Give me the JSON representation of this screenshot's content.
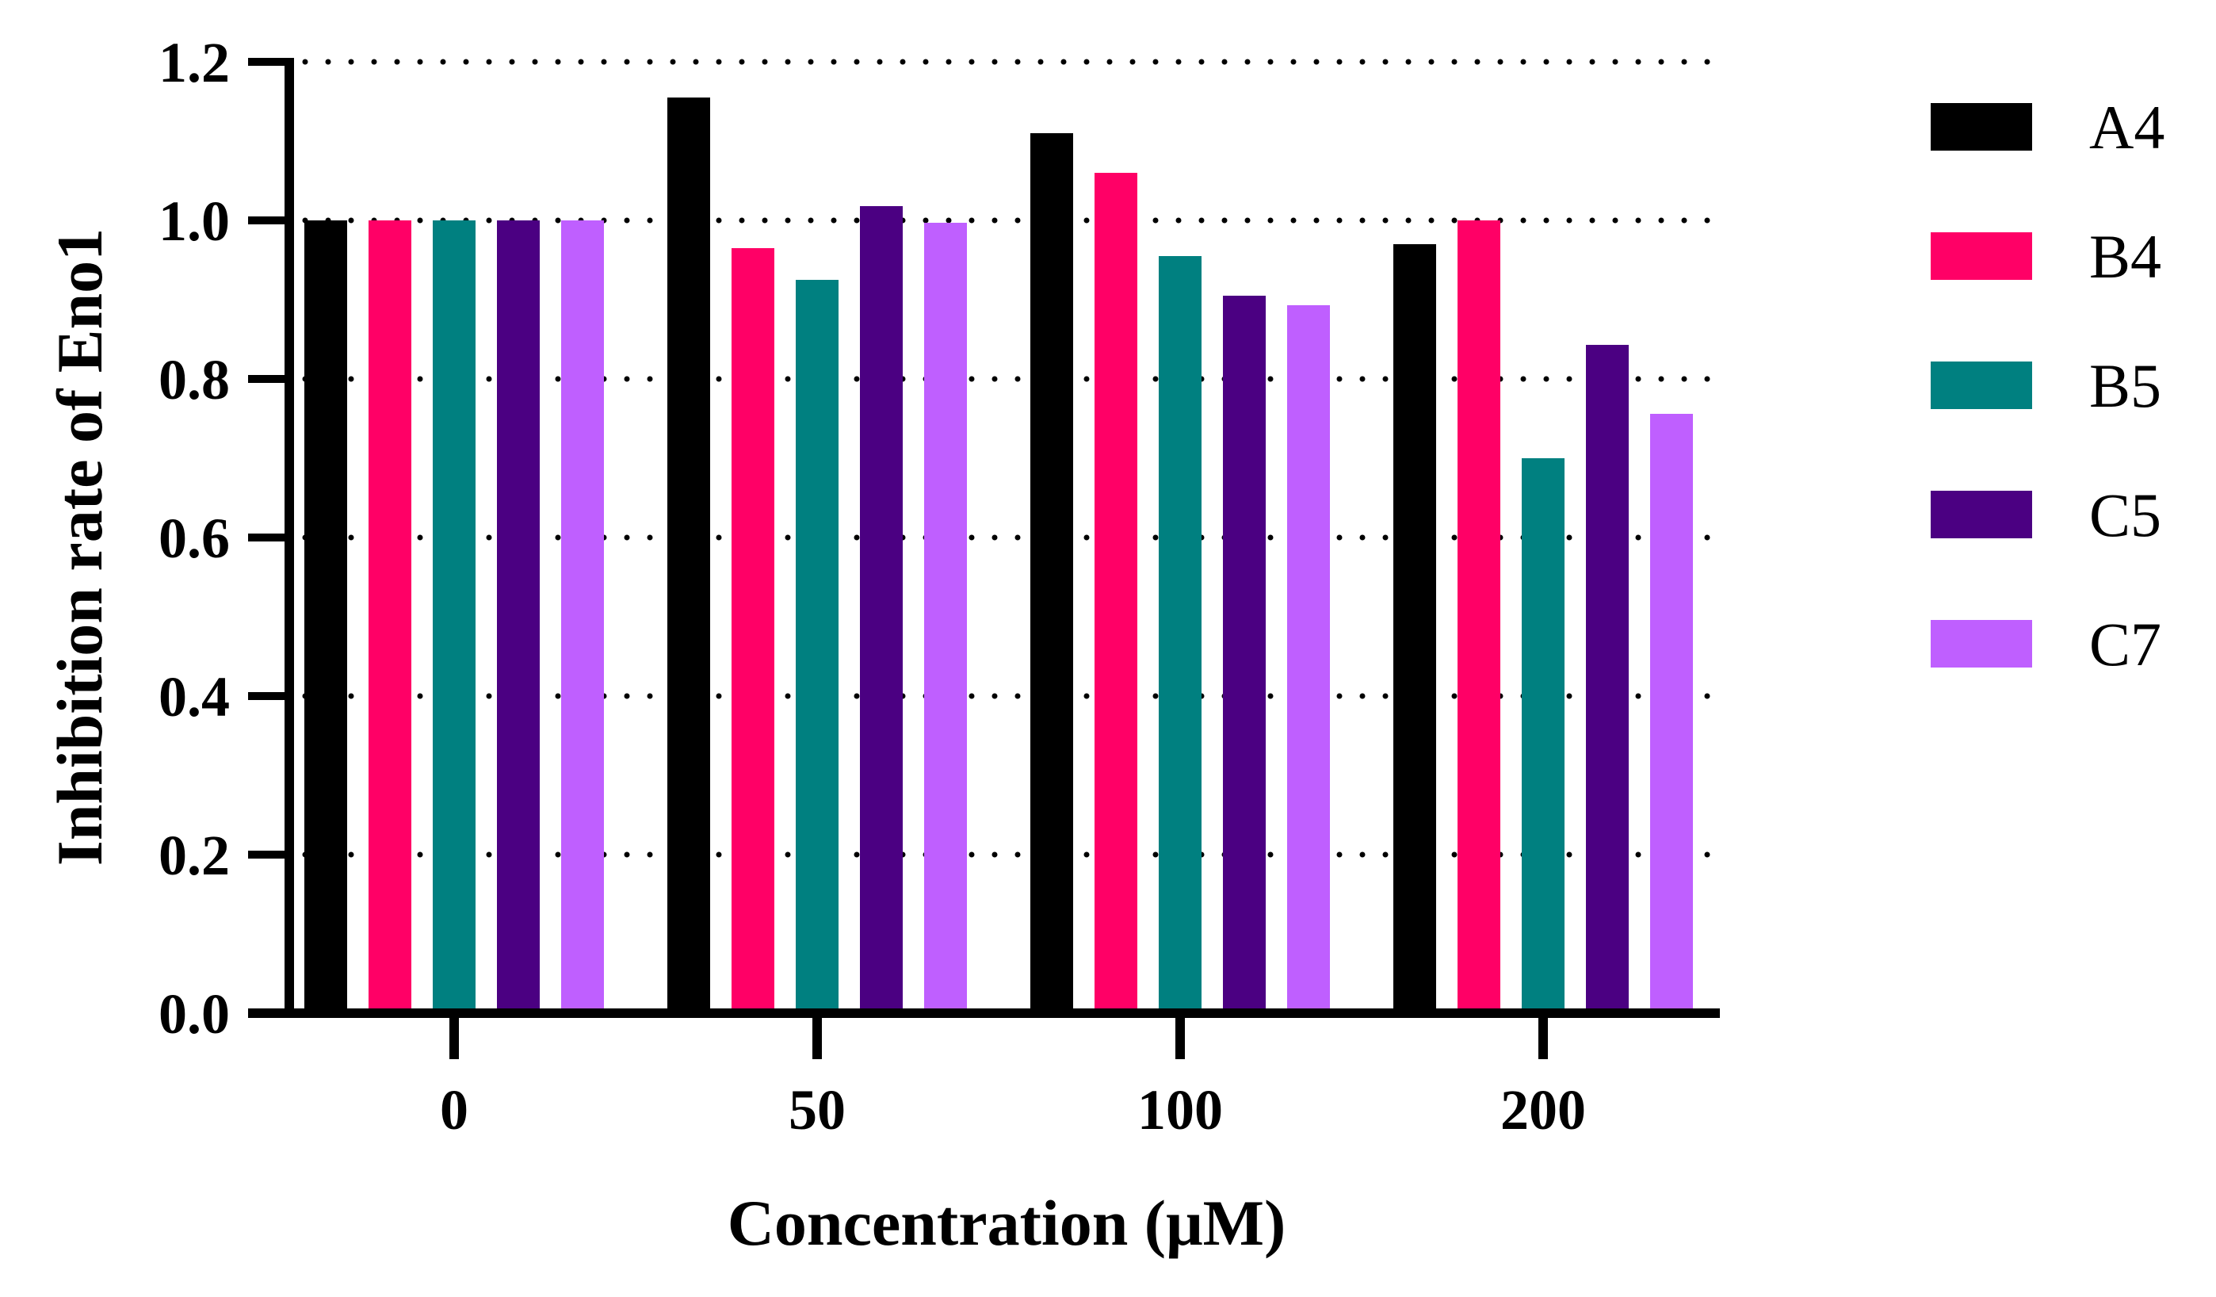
{
  "chart_data": {
    "type": "bar",
    "title": "",
    "xlabel": "Concentration (μM)",
    "ylabel": "Inhibition rate of Eno1",
    "categories": [
      "0",
      "50",
      "100",
      "200"
    ],
    "ylim": [
      0,
      1.2
    ],
    "yticks": [
      "0.0",
      "0.2",
      "0.4",
      "0.6",
      "0.8",
      "1.0",
      "1.2"
    ],
    "grid": "dotted horizontal",
    "legend_position": "right",
    "series": [
      {
        "name": "A4",
        "color": "#000000",
        "values": [
          1.0,
          1.155,
          1.11,
          0.97
        ]
      },
      {
        "name": "B4",
        "color": "#ff0066",
        "values": [
          1.0,
          0.965,
          1.06,
          1.0
        ]
      },
      {
        "name": "B5",
        "color": "#008080",
        "values": [
          1.0,
          0.925,
          0.955,
          0.7
        ]
      },
      {
        "name": "C5",
        "color": "#4b0082",
        "values": [
          1.0,
          1.018,
          0.905,
          0.843
        ]
      },
      {
        "name": "C7",
        "color": "#bf5fff",
        "values": [
          1.0,
          0.997,
          0.893,
          0.756
        ]
      }
    ]
  }
}
